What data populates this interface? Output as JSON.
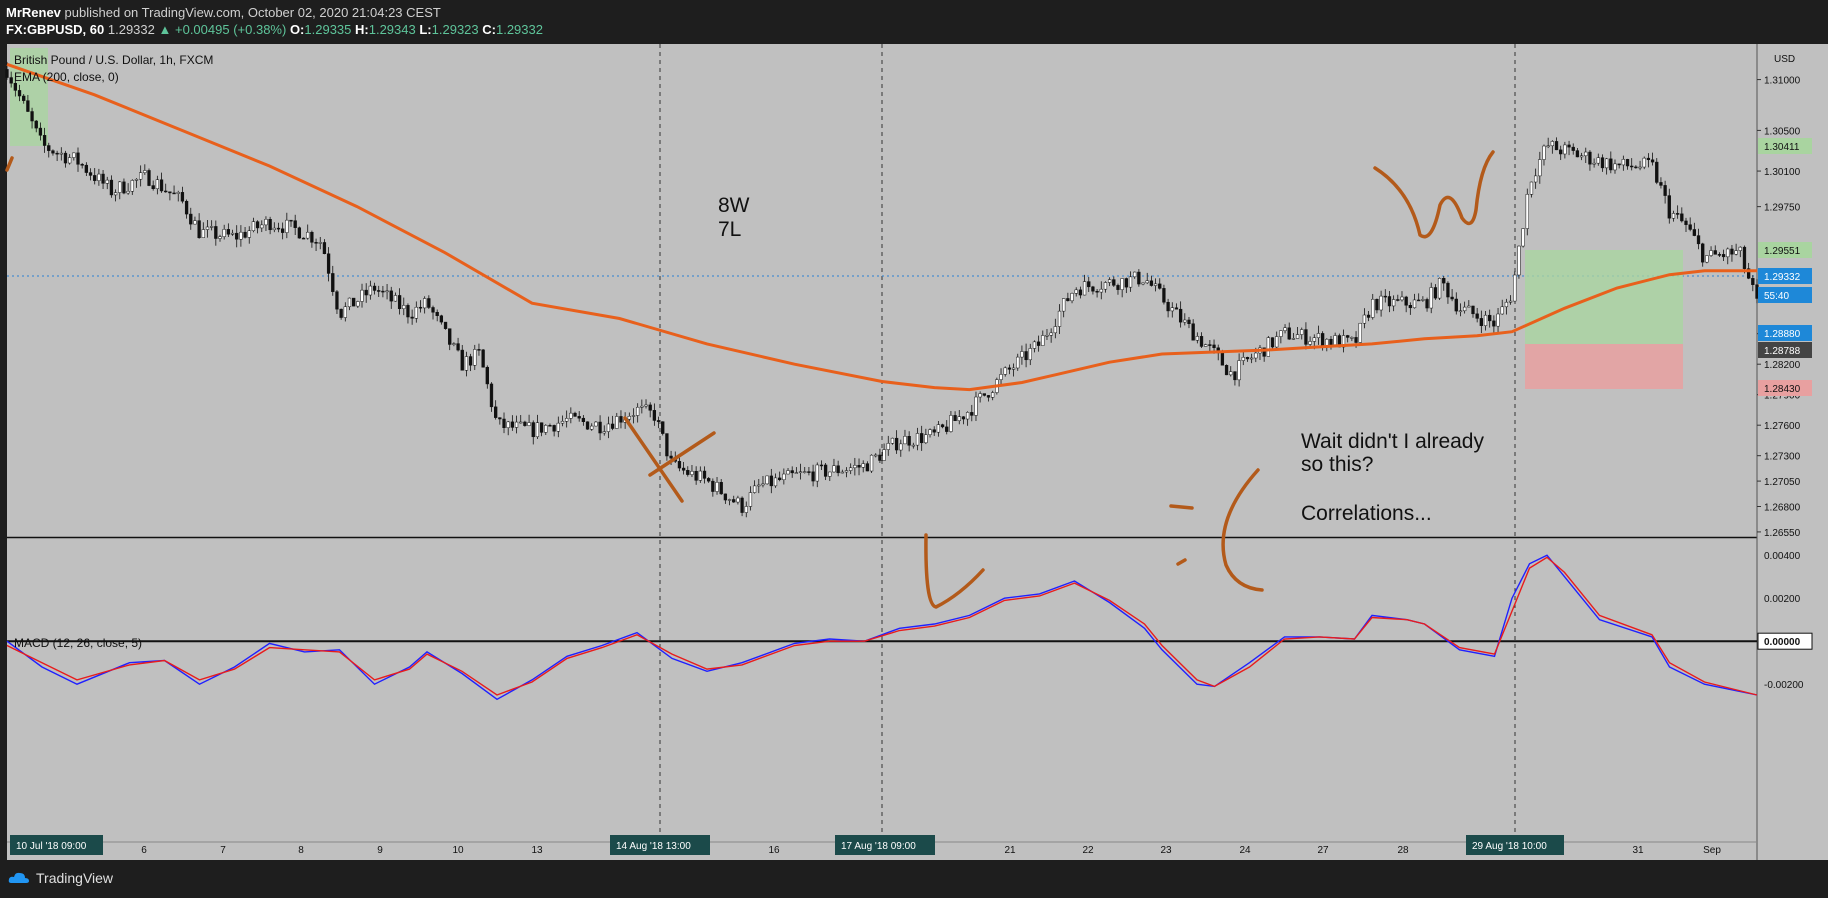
{
  "header": {
    "author": "MrRenev",
    "published_text": "published on TradingView.com, October 02, 2020 21:04:23 CEST",
    "symbol": "FX:GBPUSD, 60",
    "last_price": "1.29332",
    "change": "+0.00495 (+0.38%)",
    "ohlc": {
      "O": "1.29335",
      "H": "1.29343",
      "L": "1.29323",
      "C": "1.29332"
    }
  },
  "footer": {
    "brand": "TradingView"
  },
  "colors": {
    "chart_bg": "#c0c0c0",
    "ema": "#e8601c",
    "macd": "#2020ff",
    "signal": "#e81c1c",
    "drawing": "#b35a1a",
    "tp_zone": "#a9d4a0",
    "sl_zone": "#e8a0a0",
    "price_tag": "#1e88d8"
  },
  "chart_data": [
    {
      "type": "candlestick",
      "title": "British Pound / U.S. Dollar, 1h, FXCM",
      "indicator_label": "EMA (200, close, 0)",
      "axis_unit": "USD",
      "x_ticks": [
        "6",
        "7",
        "8",
        "9",
        "10",
        "13",
        "16",
        "21",
        "22",
        "23",
        "24",
        "27",
        "28",
        "31",
        "Sep"
      ],
      "x_highlight_labels": [
        "10 Jul '18   09:00",
        "14 Aug '18   13:00",
        "17 Aug '18   09:00",
        "29 Aug '18   10:00"
      ],
      "y_ticks": [
        "1.31000",
        "1.30500",
        "1.30100",
        "1.29750",
        "1.28500",
        "1.28200",
        "1.27900",
        "1.27600",
        "1.27300",
        "1.27050",
        "1.26800",
        "1.26550"
      ],
      "price_tags": [
        {
          "value": "1.30411",
          "kind": "take-profit"
        },
        {
          "value": "1.29551",
          "kind": "target"
        },
        {
          "value": "1.29332",
          "kind": "last"
        },
        {
          "value": "55:40",
          "kind": "countdown"
        },
        {
          "value": "1.28880",
          "kind": "entry"
        },
        {
          "value": "1.28788",
          "kind": "bid"
        },
        {
          "value": "1.28430",
          "kind": "stop-loss"
        }
      ],
      "close_path": [
        [
          0,
          1.311
        ],
        [
          0.02,
          1.3035
        ],
        [
          0.04,
          1.302
        ],
        [
          0.06,
          1.299
        ],
        [
          0.08,
          1.3005
        ],
        [
          0.1,
          1.298
        ],
        [
          0.11,
          1.295
        ],
        [
          0.13,
          1.2945
        ],
        [
          0.15,
          1.296
        ],
        [
          0.17,
          1.295
        ],
        [
          0.18,
          1.294
        ],
        [
          0.19,
          1.287
        ],
        [
          0.21,
          1.2895
        ],
        [
          0.23,
          1.287
        ],
        [
          0.24,
          1.288
        ],
        [
          0.26,
          1.282
        ],
        [
          0.27,
          1.283
        ],
        [
          0.28,
          1.276
        ],
        [
          0.3,
          1.2755
        ],
        [
          0.32,
          1.2765
        ],
        [
          0.34,
          1.276
        ],
        [
          0.36,
          1.2775
        ],
        [
          0.37,
          1.277
        ],
        [
          0.38,
          1.272
        ],
        [
          0.4,
          1.2705
        ],
        [
          0.42,
          1.268
        ],
        [
          0.43,
          1.27
        ],
        [
          0.45,
          1.271
        ],
        [
          0.47,
          1.2715
        ],
        [
          0.49,
          1.272
        ],
        [
          0.51,
          1.2745
        ],
        [
          0.53,
          1.275
        ],
        [
          0.55,
          1.2775
        ],
        [
          0.57,
          1.281
        ],
        [
          0.59,
          1.284
        ],
        [
          0.61,
          1.2895
        ],
        [
          0.63,
          1.29
        ],
        [
          0.65,
          1.2905
        ],
        [
          0.67,
          1.2865
        ],
        [
          0.69,
          1.283
        ],
        [
          0.7,
          1.281
        ],
        [
          0.71,
          1.2825
        ],
        [
          0.73,
          1.285
        ],
        [
          0.75,
          1.2845
        ],
        [
          0.77,
          1.284
        ],
        [
          0.78,
          1.288
        ],
        [
          0.8,
          1.288
        ],
        [
          0.81,
          1.288
        ],
        [
          0.82,
          1.29
        ],
        [
          0.83,
          1.2875
        ],
        [
          0.85,
          1.286
        ],
        [
          0.86,
          1.289
        ],
        [
          0.87,
          1.3
        ],
        [
          0.88,
          1.3035
        ],
        [
          0.9,
          1.3025
        ],
        [
          0.92,
          1.3015
        ],
        [
          0.94,
          1.3015
        ],
        [
          0.95,
          1.297
        ],
        [
          0.96,
          1.2955
        ],
        [
          0.97,
          1.2925
        ],
        [
          0.99,
          1.293
        ],
        [
          1.0,
          1.288
        ]
      ],
      "ema_200": [
        [
          0,
          1.3115
        ],
        [
          0.05,
          1.3085
        ],
        [
          0.1,
          1.305
        ],
        [
          0.15,
          1.3015
        ],
        [
          0.2,
          1.2975
        ],
        [
          0.25,
          1.293
        ],
        [
          0.3,
          1.288
        ],
        [
          0.35,
          1.2865
        ],
        [
          0.4,
          1.284
        ],
        [
          0.45,
          1.282
        ],
        [
          0.5,
          1.2803
        ],
        [
          0.53,
          1.2797
        ],
        [
          0.55,
          1.2795
        ],
        [
          0.58,
          1.2802
        ],
        [
          0.6,
          1.281
        ],
        [
          0.63,
          1.2822
        ],
        [
          0.66,
          1.283
        ],
        [
          0.69,
          1.2832
        ],
        [
          0.72,
          1.2834
        ],
        [
          0.75,
          1.2837
        ],
        [
          0.78,
          1.284
        ],
        [
          0.81,
          1.2845
        ],
        [
          0.84,
          1.2848
        ],
        [
          0.86,
          1.2852
        ],
        [
          0.89,
          1.2875
        ],
        [
          0.92,
          1.2895
        ],
        [
          0.95,
          1.2908
        ],
        [
          0.97,
          1.2912
        ],
        [
          1.0,
          1.2912
        ]
      ],
      "annotations": [
        "8W",
        "7L",
        "Wait didn't I already",
        "so this?",
        "Correlations..."
      ]
    },
    {
      "type": "line",
      "title": "MACD (12, 26, close, 5)",
      "y_ticks": [
        "0.00400",
        "0.00200",
        "0.00000",
        "-0.00200"
      ],
      "ylim": [
        -0.0032,
        0.0048
      ],
      "series": [
        {
          "role": "macd",
          "values": [
            [
              0,
              0
            ],
            [
              0.02,
              -0.0012
            ],
            [
              0.04,
              -0.002
            ],
            [
              0.07,
              -0.001
            ],
            [
              0.09,
              -0.0009
            ],
            [
              0.11,
              -0.002
            ],
            [
              0.13,
              -0.0012
            ],
            [
              0.15,
              -0.0001
            ],
            [
              0.17,
              -0.0005
            ],
            [
              0.19,
              -0.0004
            ],
            [
              0.21,
              -0.002
            ],
            [
              0.23,
              -0.0012
            ],
            [
              0.24,
              -0.0005
            ],
            [
              0.26,
              -0.0015
            ],
            [
              0.28,
              -0.0027
            ],
            [
              0.3,
              -0.0018
            ],
            [
              0.32,
              -0.0007
            ],
            [
              0.34,
              -0.0002
            ],
            [
              0.36,
              0.0004
            ],
            [
              0.38,
              -0.0008
            ],
            [
              0.4,
              -0.0014
            ],
            [
              0.42,
              -0.001
            ],
            [
              0.45,
              -0.0001
            ],
            [
              0.47,
              0.0001
            ],
            [
              0.49,
              0.0
            ],
            [
              0.51,
              0.0006
            ],
            [
              0.53,
              0.0008
            ],
            [
              0.55,
              0.0012
            ],
            [
              0.57,
              0.002
            ],
            [
              0.59,
              0.0022
            ],
            [
              0.61,
              0.0028
            ],
            [
              0.63,
              0.0018
            ],
            [
              0.65,
              0.0006
            ],
            [
              0.66,
              -0.0004
            ],
            [
              0.68,
              -0.002
            ],
            [
              0.69,
              -0.0021
            ],
            [
              0.71,
              -0.001
            ],
            [
              0.73,
              0.0002
            ],
            [
              0.75,
              0.0002
            ],
            [
              0.77,
              0.0001
            ],
            [
              0.78,
              0.0012
            ],
            [
              0.8,
              0.001
            ],
            [
              0.81,
              0.0008
            ],
            [
              0.83,
              -0.0004
            ],
            [
              0.85,
              -0.0007
            ],
            [
              0.86,
              0.002
            ],
            [
              0.87,
              0.0036
            ],
            [
              0.88,
              0.004
            ],
            [
              0.89,
              0.003
            ],
            [
              0.91,
              0.001
            ],
            [
              0.94,
              0.0002
            ],
            [
              0.95,
              -0.0012
            ],
            [
              0.97,
              -0.002
            ],
            [
              1.0,
              -0.0025
            ]
          ]
        },
        {
          "role": "signal",
          "values": [
            [
              0,
              -0.0002
            ],
            [
              0.02,
              -0.001
            ],
            [
              0.04,
              -0.0018
            ],
            [
              0.07,
              -0.0011
            ],
            [
              0.09,
              -0.0009
            ],
            [
              0.11,
              -0.0018
            ],
            [
              0.13,
              -0.0013
            ],
            [
              0.15,
              -0.0003
            ],
            [
              0.17,
              -0.0004
            ],
            [
              0.19,
              -0.0005
            ],
            [
              0.21,
              -0.0018
            ],
            [
              0.23,
              -0.0013
            ],
            [
              0.24,
              -0.0006
            ],
            [
              0.26,
              -0.0014
            ],
            [
              0.28,
              -0.0025
            ],
            [
              0.3,
              -0.0019
            ],
            [
              0.32,
              -0.0008
            ],
            [
              0.34,
              -0.0003
            ],
            [
              0.36,
              0.0003
            ],
            [
              0.38,
              -0.0006
            ],
            [
              0.4,
              -0.0013
            ],
            [
              0.42,
              -0.0011
            ],
            [
              0.45,
              -0.0002
            ],
            [
              0.47,
              0.0
            ],
            [
              0.49,
              0.0
            ],
            [
              0.51,
              0.0005
            ],
            [
              0.53,
              0.0007
            ],
            [
              0.55,
              0.0011
            ],
            [
              0.57,
              0.0019
            ],
            [
              0.59,
              0.0021
            ],
            [
              0.61,
              0.0027
            ],
            [
              0.63,
              0.0019
            ],
            [
              0.65,
              0.0008
            ],
            [
              0.66,
              -0.0002
            ],
            [
              0.68,
              -0.0018
            ],
            [
              0.69,
              -0.0021
            ],
            [
              0.71,
              -0.0012
            ],
            [
              0.73,
              0.0001
            ],
            [
              0.75,
              0.0002
            ],
            [
              0.77,
              0.0001
            ],
            [
              0.78,
              0.0011
            ],
            [
              0.8,
              0.001
            ],
            [
              0.81,
              0.0008
            ],
            [
              0.83,
              -0.0003
            ],
            [
              0.85,
              -0.0006
            ],
            [
              0.86,
              0.0014
            ],
            [
              0.87,
              0.0034
            ],
            [
              0.88,
              0.0039
            ],
            [
              0.89,
              0.0032
            ],
            [
              0.91,
              0.0012
            ],
            [
              0.94,
              0.0003
            ],
            [
              0.95,
              -0.001
            ],
            [
              0.97,
              -0.0019
            ],
            [
              1.0,
              -0.0025
            ]
          ]
        }
      ]
    }
  ]
}
